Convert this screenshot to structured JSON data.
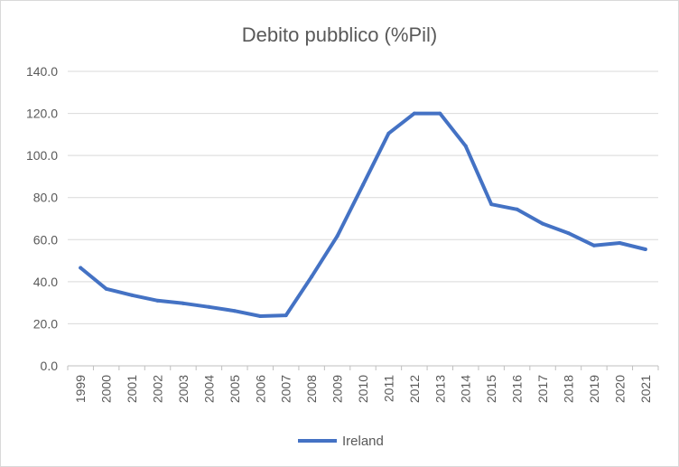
{
  "chart_data": {
    "type": "line",
    "title": "Debito pubblico (%Pil)",
    "xlabel": "",
    "ylabel": "",
    "ylim": [
      0,
      140
    ],
    "yticks": [
      "0.0",
      "20.0",
      "40.0",
      "60.0",
      "80.0",
      "100.0",
      "120.0",
      "140.0"
    ],
    "categories": [
      "1999",
      "2000",
      "2001",
      "2002",
      "2003",
      "2004",
      "2005",
      "2006",
      "2007",
      "2008",
      "2009",
      "2010",
      "2011",
      "2012",
      "2013",
      "2014",
      "2015",
      "2016",
      "2017",
      "2018",
      "2019",
      "2020",
      "2021"
    ],
    "series": [
      {
        "name": "Ireland",
        "color": "#4472C4",
        "values": [
          46.6,
          36.6,
          33.6,
          31.0,
          29.7,
          28.0,
          26.1,
          23.6,
          24.0,
          42.4,
          61.7,
          86.0,
          110.5,
          120.0,
          120.0,
          104.5,
          76.8,
          74.4,
          67.6,
          63.1,
          57.2,
          58.4,
          55.4
        ]
      }
    ],
    "grid": true,
    "legend": "bottom"
  }
}
